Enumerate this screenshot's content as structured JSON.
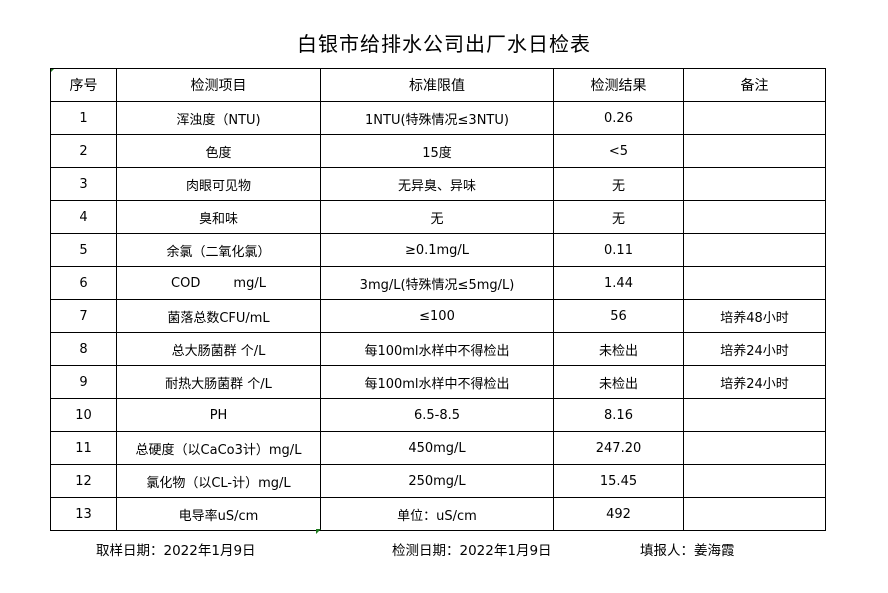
{
  "title": "白银市给排水公司出厂水日检表",
  "headers": [
    "序号",
    "检测项目",
    "标准限值",
    "检测结果",
    "备注"
  ],
  "rows": [
    [
      "1",
      "浑浊度（NTU)",
      "1NTU(特殊情况≤3NTU)",
      "0.26",
      ""
    ],
    [
      "2",
      "色度",
      "15度",
      "<5",
      ""
    ],
    [
      "3",
      "肉眼可见物",
      "无异臭、异味",
      "无",
      ""
    ],
    [
      "4",
      "臭和味",
      "无",
      "无",
      ""
    ],
    [
      "5",
      "余氯（二氧化氯）",
      "≥0.1mg/L",
      "0.11",
      ""
    ],
    [
      "6",
      "COD        mg/L",
      "3mg/L(特殊情况≤5mg/L)",
      "1.44",
      ""
    ],
    [
      "7",
      "菌落总数CFU/mL",
      "≤100",
      "56",
      "培养48小时"
    ],
    [
      "8",
      "总大肠菌群 个/L",
      "每100ml水样中不得检出",
      "未检出",
      "培养24小时"
    ],
    [
      "9",
      "耐热大肠菌群 个/L",
      "每100ml水样中不得检出",
      "未检出",
      "培养24小时"
    ],
    [
      "10",
      "PH",
      "6.5-8.5",
      "8.16",
      ""
    ],
    [
      "11",
      "总硬度（以CaCo3计）mg/L",
      "450mg/L",
      "247.20",
      ""
    ],
    [
      "12",
      "氯化物（以CL-计）mg/L",
      "250mg/L",
      "15.45",
      ""
    ],
    [
      "13",
      "电导率uS/cm",
      "单位：uS/cm",
      "492",
      ""
    ]
  ],
  "footer": {
    "sampling_date": "取样日期：2022年1月9日",
    "test_date": "检测日期：2022年1月9日",
    "reporter": "填报人：姜海霞"
  }
}
